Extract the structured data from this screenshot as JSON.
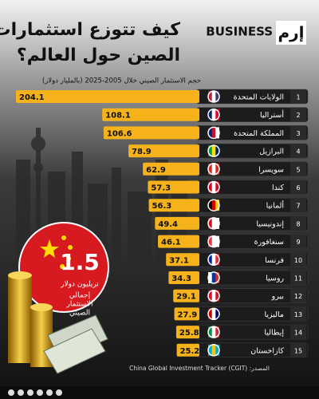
{
  "logo": {
    "brand": "إرم",
    "word": "BUSINESS"
  },
  "chart_data": {
    "type": "bar",
    "title": [
      "كيف تتوزع استثمارات",
      "الصين حول العالم؟"
    ],
    "subtitle": "حجم الاستثمار الصيني خلال 2005-2025 (بالمليار دولار)",
    "ranks": [
      1,
      2,
      3,
      4,
      5,
      6,
      7,
      8,
      9,
      10,
      11,
      12,
      13,
      14,
      15
    ],
    "categories": [
      "الولايات المتحدة",
      "أستراليا",
      "المملكة المتحدة",
      "البرازيل",
      "سويسرا",
      "كندا",
      "ألمانيا",
      "إندونيسيا",
      "سنغافورة",
      "فرنسا",
      "روسيا",
      "بيرو",
      "ماليزيا",
      "إيطاليا",
      "كازاخستان"
    ],
    "values": [
      204.1,
      108.1,
      106.6,
      78.9,
      62.9,
      57.3,
      56.3,
      49.4,
      46.1,
      37.1,
      34.3,
      29.1,
      27.9,
      25.8,
      25.2
    ],
    "color": "#f5b21b",
    "total": {
      "value": 1.5,
      "unit": "تريليون دولار",
      "label": [
        "إجمالي",
        "الاستثمار",
        "الصيني"
      ]
    },
    "source": "المصدر: China Global Investment Tracker (CGIT)"
  }
}
